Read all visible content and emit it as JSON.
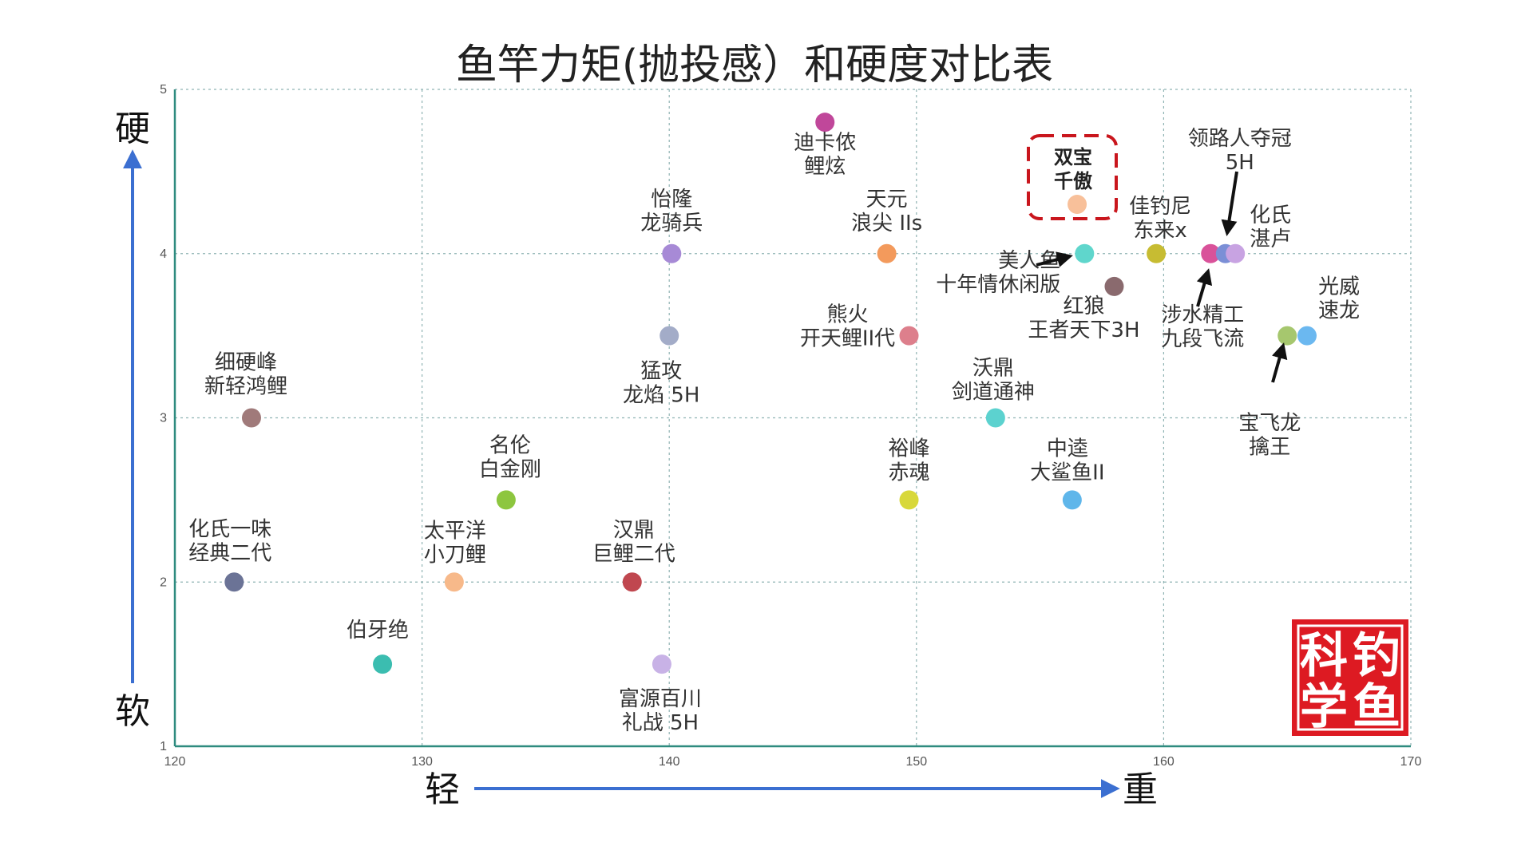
{
  "chart_data": {
    "type": "scatter",
    "title": "鱼竿力矩(抛投感）和硬度对比表",
    "x_ticks": [
      "120",
      "130",
      "140",
      "150",
      "160",
      "170"
    ],
    "y_ticks": [
      "1",
      "2",
      "3",
      "4",
      "5"
    ],
    "xlim": [
      120,
      170
    ],
    "ylim": [
      1,
      5
    ],
    "grid": true,
    "axis_words": {
      "y_top": "硬",
      "y_bottom": "软",
      "x_left": "轻",
      "x_right": "重"
    },
    "highlight_label": [
      "双宝",
      "千傲"
    ],
    "points": [
      {
        "label": [
          "迪卡侬",
          "鲤炫"
        ],
        "x": 146.3,
        "y": 4.8,
        "color": "#c0479a"
      },
      {
        "label": [
          "双宝",
          "千傲"
        ],
        "x": 156.5,
        "y": 4.3,
        "color": "#f8c09a"
      },
      {
        "label": [
          "天元",
          "浪尖 IIs"
        ],
        "x": 148.8,
        "y": 4.0,
        "color": "#f39a5c"
      },
      {
        "label": [
          "怡隆",
          "龙骑兵"
        ],
        "x": 140.1,
        "y": 4.0,
        "color": "#a78ad6"
      },
      {
        "label": [
          "美人鱼",
          "十年情休闲版"
        ],
        "x": 156.8,
        "y": 4.0,
        "color": "#5fd6cc"
      },
      {
        "label": [
          "佳钓尼",
          "东来x"
        ],
        "x": 159.7,
        "y": 4.0,
        "color": "#c7bc32"
      },
      {
        "label": [
          "涉水精工",
          "九段飞流"
        ],
        "x": 161.9,
        "y": 4.0,
        "color": "#d9529a"
      },
      {
        "label": [
          "领路人夺冠",
          "5H"
        ],
        "x": 162.5,
        "y": 4.0,
        "color": "#7b8fd6"
      },
      {
        "label": [
          "化氏",
          "湛卢"
        ],
        "x": 162.9,
        "y": 4.0,
        "color": "#c8a3e2"
      },
      {
        "label": [
          "红狼",
          "王者天下3H"
        ],
        "x": 158.0,
        "y": 3.8,
        "color": "#8a6a6e"
      },
      {
        "label": [
          "熊火",
          "开天鲤II代"
        ],
        "x": 149.7,
        "y": 3.5,
        "color": "#dd7f8c"
      },
      {
        "label": [
          "猛攻",
          "龙焰 5H"
        ],
        "x": 140.0,
        "y": 3.5,
        "color": "#a3acc8"
      },
      {
        "label": [
          "宝飞龙",
          "擒王"
        ],
        "x": 165.0,
        "y": 3.5,
        "color": "#a6c76e"
      },
      {
        "label": [
          "光威",
          "速龙"
        ],
        "x": 165.8,
        "y": 3.5,
        "color": "#6bb8f0"
      },
      {
        "label": [
          "细硬峰",
          "新轻鸿鲤"
        ],
        "x": 123.1,
        "y": 3.0,
        "color": "#a07a7a"
      },
      {
        "label": [
          "沃鼎",
          "剑道通神"
        ],
        "x": 153.2,
        "y": 3.0,
        "color": "#5cd2cf"
      },
      {
        "label": [
          "名伦",
          "白金刚"
        ],
        "x": 133.4,
        "y": 2.5,
        "color": "#8dc63f"
      },
      {
        "label": [
          "裕峰",
          "赤魂"
        ],
        "x": 149.7,
        "y": 2.5,
        "color": "#d8d83a"
      },
      {
        "label": [
          "中逵",
          "大鲨鱼II"
        ],
        "x": 156.3,
        "y": 2.5,
        "color": "#5fb6ea"
      },
      {
        "label": [
          "化氏一味",
          "经典二代"
        ],
        "x": 122.4,
        "y": 2.0,
        "color": "#6b7396"
      },
      {
        "label": [
          "太平洋",
          "小刀鲤"
        ],
        "x": 131.3,
        "y": 2.0,
        "color": "#f7b98a"
      },
      {
        "label": [
          "汉鼎",
          "巨鲤二代"
        ],
        "x": 138.5,
        "y": 2.0,
        "color": "#c0474f"
      },
      {
        "label": [
          "伯牙绝"
        ],
        "x": 128.4,
        "y": 1.5,
        "color": "#3bbdb0"
      },
      {
        "label": [
          "富源百川",
          "礼战 5H"
        ],
        "x": 139.7,
        "y": 1.5,
        "color": "#c8b2e6"
      }
    ]
  },
  "seal": {
    "chars": [
      "科",
      "钓",
      "学",
      "鱼"
    ],
    "color": "#dd1a22"
  }
}
